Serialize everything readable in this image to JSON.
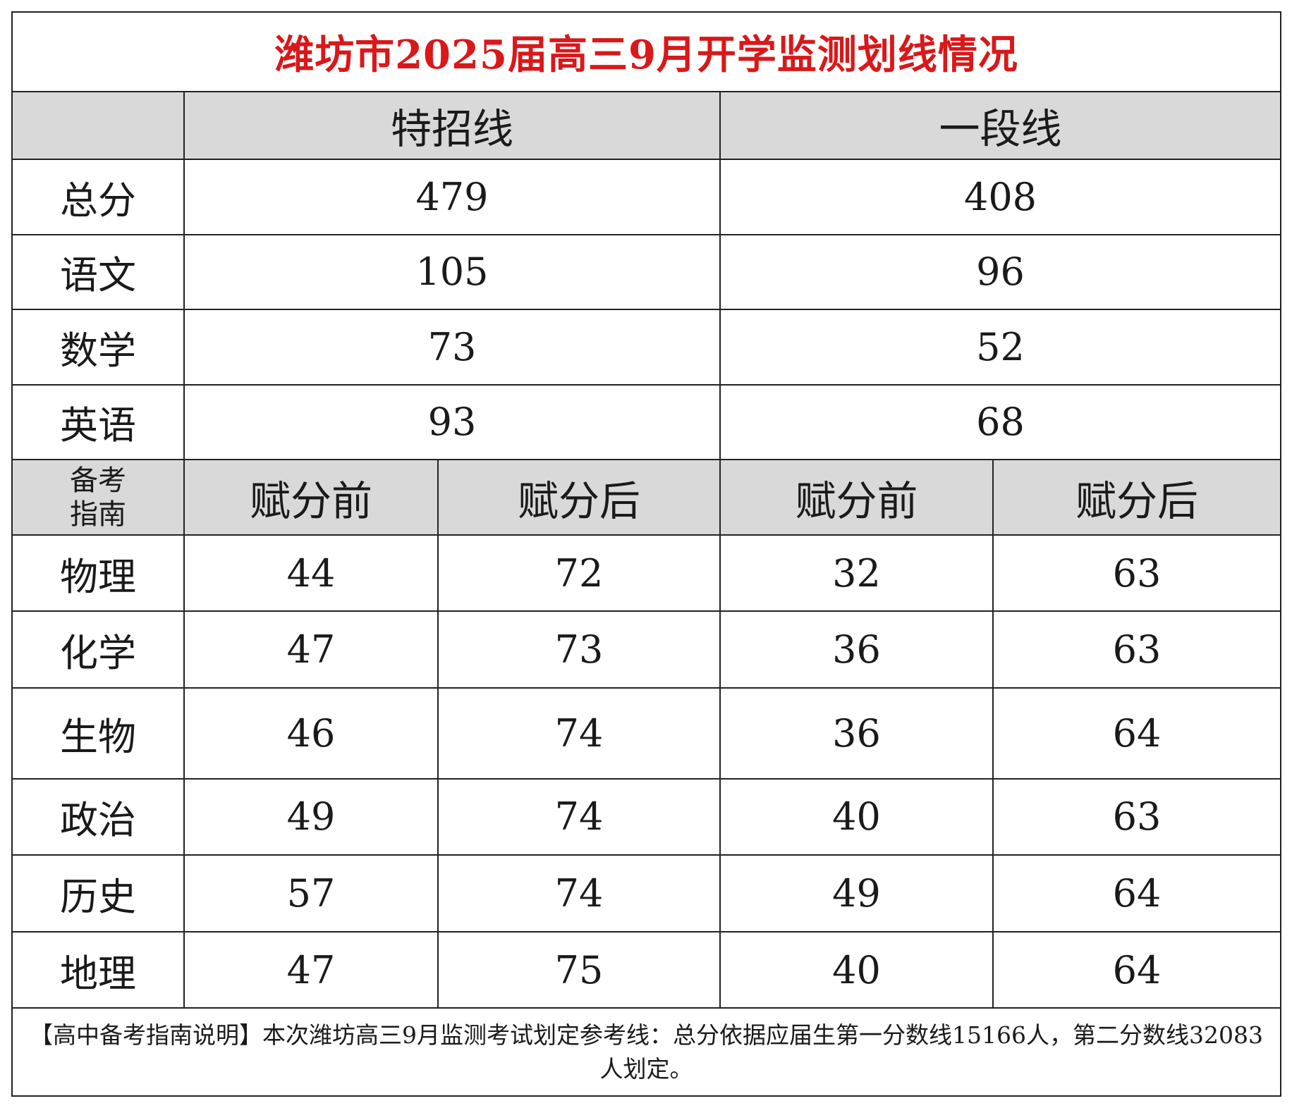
{
  "title": "潍坊市2025届高三9月开学监测划线情况",
  "header": {
    "line1": "特招线",
    "line2": "一段线"
  },
  "main_rows": [
    {
      "subject": "总分",
      "special": "479",
      "tier1": "408"
    },
    {
      "subject": "语文",
      "special": "105",
      "tier1": "96"
    },
    {
      "subject": "数学",
      "special": "73",
      "tier1": "52"
    },
    {
      "subject": "英语",
      "special": "93",
      "tier1": "68"
    }
  ],
  "sub_header": {
    "corner_label": "备考\n指南",
    "before": "赋分前",
    "after": "赋分后"
  },
  "elective_rows": [
    {
      "subject": "物理",
      "special_before": "44",
      "special_after": "72",
      "tier1_before": "32",
      "tier1_after": "63"
    },
    {
      "subject": "化学",
      "special_before": "47",
      "special_after": "73",
      "tier1_before": "36",
      "tier1_after": "63"
    },
    {
      "subject": "生物",
      "special_before": "46",
      "special_after": "74",
      "tier1_before": "36",
      "tier1_after": "64"
    },
    {
      "subject": "政治",
      "special_before": "49",
      "special_after": "74",
      "tier1_before": "40",
      "tier1_after": "63"
    },
    {
      "subject": "历史",
      "special_before": "57",
      "special_after": "74",
      "tier1_before": "49",
      "tier1_after": "64"
    },
    {
      "subject": "地理",
      "special_before": "47",
      "special_after": "75",
      "tier1_before": "40",
      "tier1_after": "64"
    }
  ],
  "footnote": "【高中备考指南说明】本次潍坊高三9月监测考试划定参考线：总分依据应届生第一分数线15166人，第二分数线32083人划定。",
  "colors": {
    "title": "#d9181a",
    "header_bg": "#d9d9d9",
    "border": "#222222"
  }
}
